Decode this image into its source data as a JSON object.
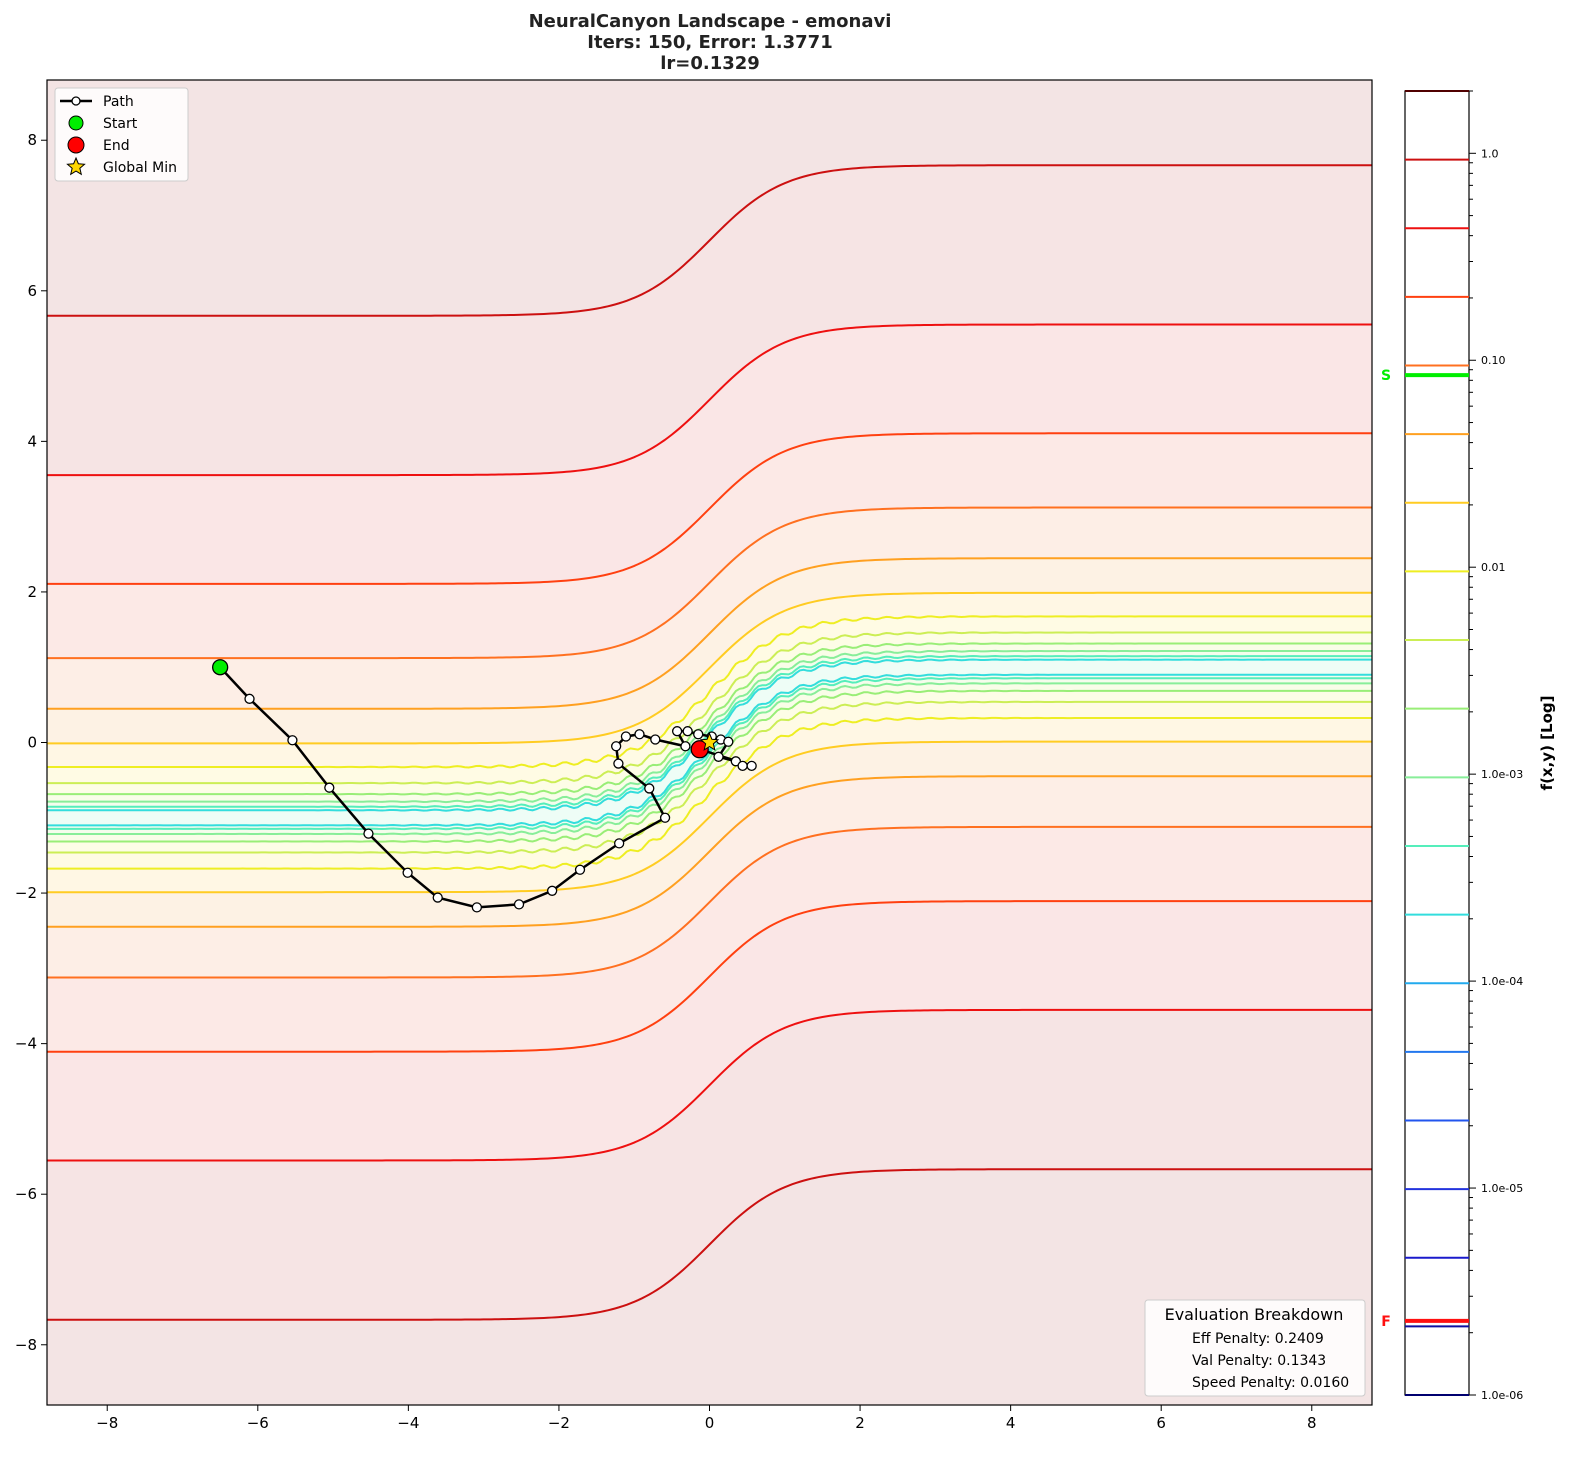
{
  "chart_data": {
    "type": "contour",
    "title_lines": [
      "NeuralCanyon Landscape - emonavi",
      "Iters: 150, Error: 1.3771",
      "lr=0.1329"
    ],
    "xlim": [
      -8.8,
      8.8
    ],
    "ylim": [
      -8.8,
      8.8
    ],
    "xticks": [
      -8,
      -6,
      -4,
      -2,
      0,
      2,
      4,
      6,
      8
    ],
    "yticks": [
      -8,
      -6,
      -4,
      -2,
      0,
      2,
      4,
      6,
      8
    ],
    "grid": false,
    "contour_levels": {
      "count": 20,
      "min": 1e-06,
      "max": 2.0,
      "scale": "log"
    },
    "level_colors": [
      "#000070",
      "#1010a0",
      "#1a1acc",
      "#2233dd",
      "#2255ee",
      "#2277ee",
      "#22aaee",
      "#33dddd",
      "#55eebb",
      "#88ee99",
      "#99ee77",
      "#ccee55",
      "#eeee22",
      "#ffcc22",
      "#ffa020",
      "#ff7020",
      "#ff4010",
      "#ee1010",
      "#cc1010",
      "#500000"
    ],
    "colorbar": {
      "label": "f(x,y) [Log]",
      "ticks": [
        {
          "value": 1.0,
          "label": "1.0"
        },
        {
          "value": 0.1,
          "label": "0.10"
        },
        {
          "value": 0.01,
          "label": "0.01"
        },
        {
          "value": 0.001,
          "label": "1.0e-03"
        },
        {
          "value": 0.0001,
          "label": "1.0e-04"
        },
        {
          "value": 1e-05,
          "label": "1.0e-05"
        },
        {
          "value": 1e-06,
          "label": "1.0e-06"
        }
      ],
      "markers": [
        {
          "label": "S",
          "value": 0.0847,
          "color": "#00ee00"
        },
        {
          "label": "F",
          "value": 2.28e-06,
          "color": "#ff1010"
        }
      ]
    },
    "path": {
      "name": "Path",
      "x": [
        -6.51,
        -6.11,
        -5.54,
        -5.05,
        -4.53,
        -4.01,
        -3.61,
        -3.09,
        -2.53,
        -2.09,
        -1.72,
        -1.2,
        -0.59,
        -0.8,
        -1.21,
        -1.24,
        -1.11,
        -0.93,
        -0.72,
        -0.32,
        -0.43,
        -0.29,
        -0.15,
        0.03,
        0.15,
        0.25,
        0.12,
        0.35,
        0.44,
        0.56,
        -0.13
      ],
      "y": [
        1.01,
        0.58,
        0.03,
        -0.6,
        -1.21,
        -1.73,
        -2.06,
        -2.19,
        -2.15,
        -1.97,
        -1.69,
        -1.34,
        -1.0,
        -0.61,
        -0.28,
        -0.05,
        0.08,
        0.11,
        0.04,
        -0.05,
        0.15,
        0.15,
        0.11,
        0.08,
        0.04,
        0.01,
        -0.19,
        -0.25,
        -0.31,
        -0.31,
        -0.09
      ]
    },
    "start": {
      "name": "Start",
      "x": -6.5,
      "y": 1.0,
      "color": "#00ee00"
    },
    "end": {
      "name": "End",
      "x": -0.13,
      "y": -0.09,
      "color": "#ff0000"
    },
    "global_min": {
      "name": "Global Min",
      "x": 0.0,
      "y": 0.0,
      "color": "#ffd700"
    },
    "legend": {
      "placement": "upper-left",
      "entries": [
        "Path",
        "Start",
        "End",
        "Global Min"
      ]
    },
    "evaluation": {
      "title": "Evaluation Breakdown",
      "lines": [
        "Eff Penalty: 0.2409",
        "Val Penalty: 0.1343",
        "Speed Penalty: 0.0160"
      ],
      "placement": "lower-right"
    }
  }
}
